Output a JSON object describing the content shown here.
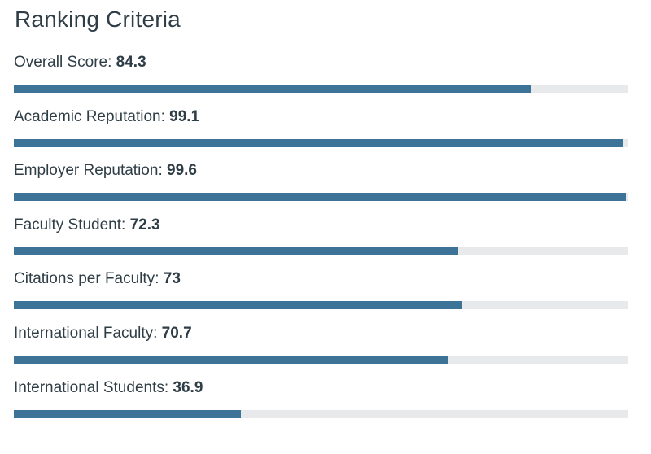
{
  "title": "Ranking Criteria",
  "colors": {
    "bar_fill": "#3d7396",
    "bar_track": "#e8e9ea",
    "text": "#2f3e46"
  },
  "chart_data": {
    "type": "bar",
    "orientation": "horizontal",
    "title": "Ranking Criteria",
    "xlim": [
      0,
      100
    ],
    "categories": [
      "Overall Score",
      "Academic Reputation",
      "Employer Reputation",
      "Faculty Student",
      "Citations per Faculty",
      "International Faculty",
      "International Students"
    ],
    "values": [
      84.3,
      99.1,
      99.6,
      72.3,
      73,
      70.7,
      36.9
    ],
    "value_labels": [
      "84.3",
      "99.1",
      "99.6",
      "72.3",
      "73",
      "70.7",
      "36.9"
    ]
  }
}
